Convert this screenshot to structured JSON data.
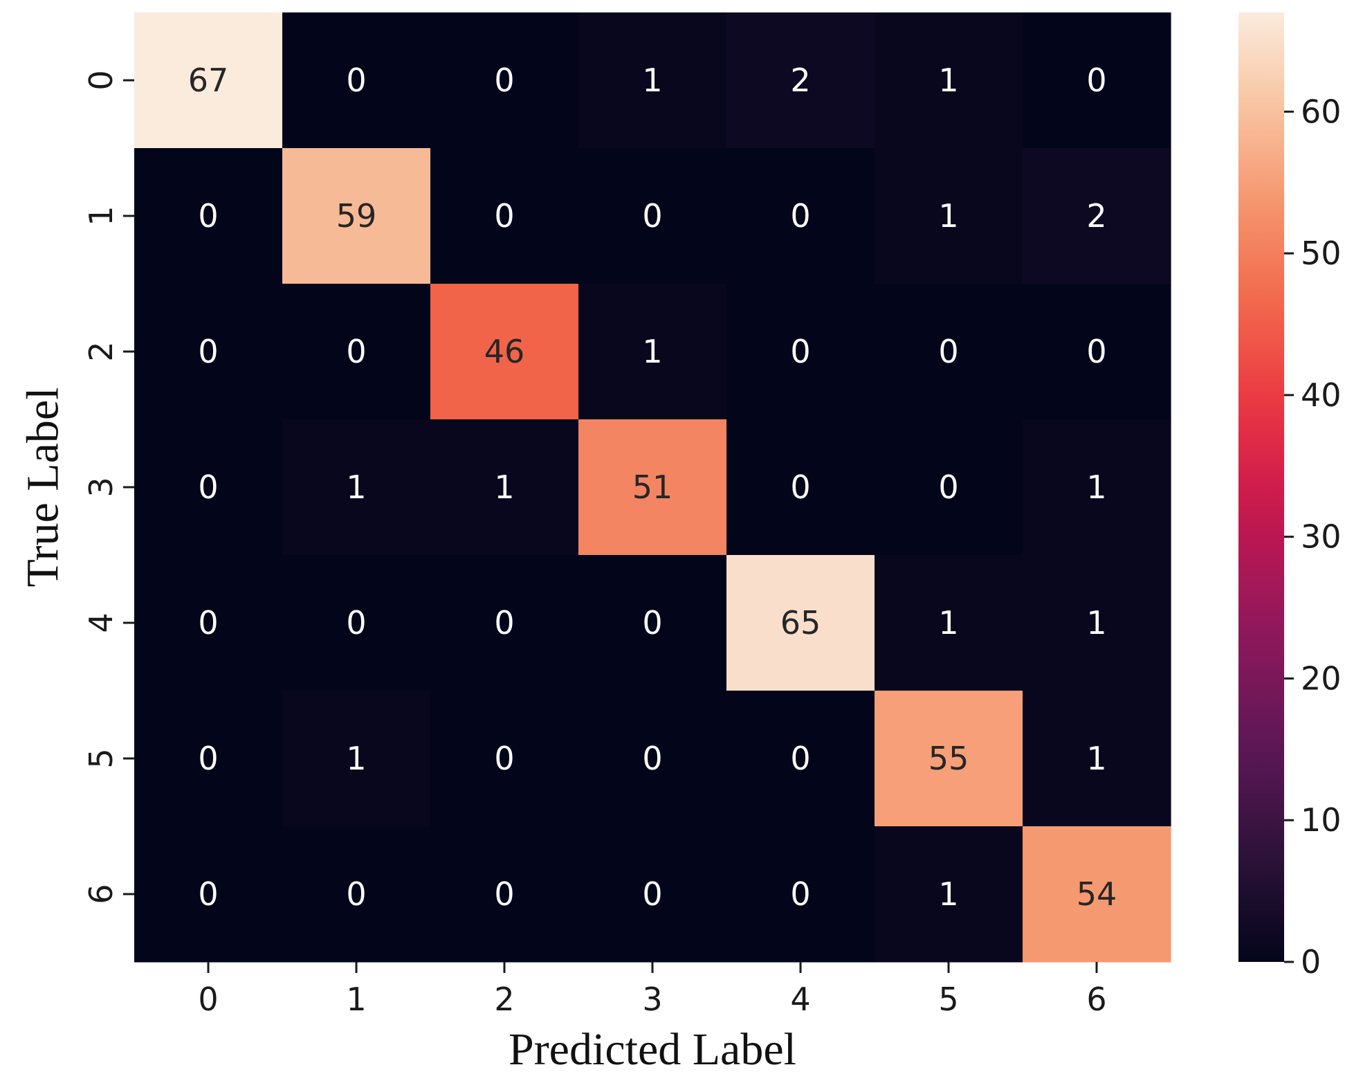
{
  "chart_data": {
    "type": "heatmap",
    "title": "",
    "xlabel": "Predicted Label",
    "ylabel": "True Label",
    "x_categories": [
      "0",
      "1",
      "2",
      "3",
      "4",
      "5",
      "6"
    ],
    "y_categories": [
      "0",
      "1",
      "2",
      "3",
      "4",
      "5",
      "6"
    ],
    "matrix": [
      [
        67,
        0,
        0,
        1,
        2,
        1,
        0
      ],
      [
        0,
        59,
        0,
        0,
        0,
        1,
        2
      ],
      [
        0,
        0,
        46,
        1,
        0,
        0,
        0
      ],
      [
        0,
        1,
        1,
        51,
        0,
        0,
        1
      ],
      [
        0,
        0,
        0,
        0,
        65,
        1,
        1
      ],
      [
        0,
        1,
        0,
        0,
        0,
        55,
        1
      ],
      [
        0,
        0,
        0,
        0,
        0,
        1,
        54
      ]
    ],
    "annotated": true,
    "colormap": "rocket",
    "colorbar": {
      "range": [
        0,
        67
      ],
      "ticks": [
        0,
        10,
        20,
        30,
        40,
        50,
        60
      ]
    },
    "grid": false
  }
}
